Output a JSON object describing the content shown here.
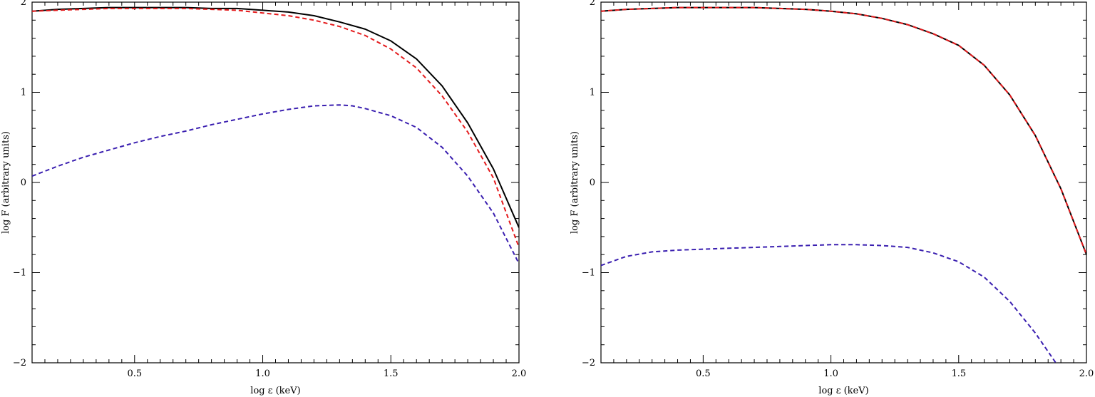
{
  "chart_data": [
    {
      "type": "line",
      "xlabel": "log ε (keV)",
      "ylabel": "log F (arbitrary units)",
      "xlim": [
        0.1,
        2.0
      ],
      "ylim": [
        -2,
        2
      ],
      "xticks": [
        "0.5",
        "1.0",
        "1.5",
        "2.0"
      ],
      "yticks": [
        "−2",
        "−1",
        "0",
        "1",
        "2"
      ],
      "grid": false,
      "series": [
        {
          "color": "#000000",
          "dash": "solid",
          "x": [
            0.1,
            0.2,
            0.3,
            0.4,
            0.5,
            0.6,
            0.7,
            0.8,
            0.9,
            1.0,
            1.1,
            1.2,
            1.3,
            1.4,
            1.5,
            1.6,
            1.7,
            1.8,
            1.9,
            2.0
          ],
          "y": [
            1.9,
            1.92,
            1.93,
            1.94,
            1.94,
            1.94,
            1.94,
            1.93,
            1.93,
            1.91,
            1.89,
            1.85,
            1.78,
            1.7,
            1.57,
            1.37,
            1.07,
            0.66,
            0.15,
            -0.5
          ]
        },
        {
          "color": "#e41a1c",
          "dash": "dashed",
          "x": [
            0.1,
            0.2,
            0.3,
            0.4,
            0.5,
            0.6,
            0.7,
            0.8,
            0.9,
            1.0,
            1.1,
            1.2,
            1.3,
            1.4,
            1.5,
            1.6,
            1.7,
            1.8,
            1.9,
            2.0
          ],
          "y": [
            1.9,
            1.91,
            1.92,
            1.93,
            1.93,
            1.93,
            1.93,
            1.92,
            1.91,
            1.88,
            1.85,
            1.8,
            1.73,
            1.63,
            1.48,
            1.27,
            0.96,
            0.56,
            0.05,
            -0.72
          ]
        },
        {
          "color": "#3a1fb0",
          "dash": "dashed",
          "x": [
            0.1,
            0.2,
            0.3,
            0.4,
            0.5,
            0.6,
            0.7,
            0.8,
            0.9,
            1.0,
            1.1,
            1.2,
            1.3,
            1.35,
            1.4,
            1.5,
            1.6,
            1.7,
            1.8,
            1.9,
            2.0
          ],
          "y": [
            0.07,
            0.18,
            0.28,
            0.36,
            0.44,
            0.51,
            0.57,
            0.64,
            0.7,
            0.76,
            0.81,
            0.85,
            0.86,
            0.85,
            0.82,
            0.74,
            0.61,
            0.39,
            0.07,
            -0.34,
            -0.9
          ]
        }
      ]
    },
    {
      "type": "line",
      "xlabel": "log ε (keV)",
      "ylabel": "log F (arbitrary units)",
      "xlim": [
        0.1,
        2.0
      ],
      "ylim": [
        -2,
        2
      ],
      "xticks": [
        "0.5",
        "1.0",
        "1.5",
        "2.0"
      ],
      "yticks": [
        "−2",
        "−1",
        "0",
        "1",
        "2"
      ],
      "grid": false,
      "series": [
        {
          "color": "#000000",
          "dash": "solid",
          "x": [
            0.1,
            0.2,
            0.3,
            0.4,
            0.5,
            0.6,
            0.7,
            0.8,
            0.9,
            1.0,
            1.1,
            1.2,
            1.3,
            1.4,
            1.5,
            1.6,
            1.7,
            1.8,
            1.9,
            2.0
          ],
          "y": [
            1.9,
            1.92,
            1.93,
            1.94,
            1.94,
            1.94,
            1.94,
            1.93,
            1.92,
            1.9,
            1.87,
            1.82,
            1.75,
            1.65,
            1.52,
            1.3,
            0.97,
            0.52,
            -0.07,
            -0.8
          ]
        },
        {
          "color": "#e41a1c",
          "dash": "dashed",
          "x": [
            0.1,
            0.2,
            0.3,
            0.4,
            0.5,
            0.6,
            0.7,
            0.8,
            0.9,
            1.0,
            1.1,
            1.2,
            1.3,
            1.4,
            1.5,
            1.6,
            1.7,
            1.8,
            1.9,
            2.0
          ],
          "y": [
            1.9,
            1.92,
            1.93,
            1.94,
            1.94,
            1.94,
            1.94,
            1.93,
            1.92,
            1.9,
            1.87,
            1.82,
            1.75,
            1.65,
            1.52,
            1.3,
            0.97,
            0.52,
            -0.07,
            -0.8
          ]
        },
        {
          "color": "#3a1fb0",
          "dash": "dashed",
          "x": [
            0.1,
            0.2,
            0.3,
            0.4,
            0.5,
            0.6,
            0.7,
            0.8,
            0.9,
            1.0,
            1.1,
            1.2,
            1.3,
            1.4,
            1.5,
            1.6,
            1.7,
            1.8,
            1.88
          ],
          "y": [
            -0.92,
            -0.82,
            -0.77,
            -0.75,
            -0.74,
            -0.73,
            -0.72,
            -0.71,
            -0.7,
            -0.69,
            -0.69,
            -0.7,
            -0.72,
            -0.78,
            -0.88,
            -1.05,
            -1.32,
            -1.67,
            -2.0
          ]
        }
      ]
    }
  ]
}
